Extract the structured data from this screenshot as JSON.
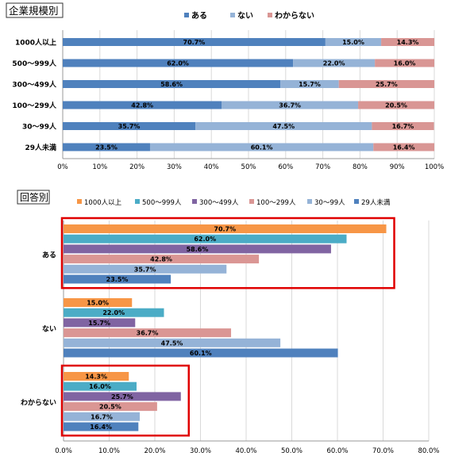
{
  "chart_data": [
    {
      "type": "bar",
      "orientation": "horizontal",
      "stacked": true,
      "percent_stacked": true,
      "title": "企業規模別",
      "categories": [
        "1000人以上",
        "500～999人",
        "300～499人",
        "100～299人",
        "30～99人",
        "29人未満"
      ],
      "series": [
        {
          "name": "ある",
          "color": "#4F81BD",
          "values": [
            70.7,
            62.0,
            58.6,
            42.8,
            35.7,
            23.5
          ]
        },
        {
          "name": "ない",
          "color": "#95B3D7",
          "values": [
            15.0,
            22.0,
            15.7,
            36.7,
            47.5,
            60.1
          ]
        },
        {
          "name": "わからない",
          "color": "#D99694",
          "values": [
            14.3,
            16.0,
            25.7,
            20.5,
            16.7,
            16.4
          ]
        }
      ],
      "xlim": [
        0,
        100
      ],
      "xticks": [
        "0%",
        "10%",
        "20%",
        "30%",
        "40%",
        "50%",
        "60%",
        "70%",
        "80%",
        "90%",
        "100%"
      ],
      "grid": true,
      "legend_position": "top"
    },
    {
      "type": "bar",
      "orientation": "horizontal",
      "stacked": false,
      "title": "回答別",
      "categories": [
        "ある",
        "ない",
        "わからない"
      ],
      "series": [
        {
          "name": "1000人以上",
          "color": "#F79646",
          "values": [
            70.7,
            15.0,
            14.3
          ]
        },
        {
          "name": "500～999人",
          "color": "#4BACC6",
          "values": [
            62.0,
            22.0,
            16.0
          ]
        },
        {
          "name": "300～499人",
          "color": "#8064A2",
          "values": [
            58.6,
            15.7,
            25.7
          ]
        },
        {
          "name": "100～299人",
          "color": "#DA9694",
          "values": [
            42.8,
            36.7,
            20.5
          ]
        },
        {
          "name": "30～99人",
          "color": "#95B3D7",
          "values": [
            35.7,
            47.5,
            16.7
          ]
        },
        {
          "name": "29人未満",
          "color": "#4F81BD",
          "values": [
            23.5,
            60.1,
            16.4
          ]
        }
      ],
      "xlim": [
        0,
        80
      ],
      "xticks": [
        "0.0%",
        "10.0%",
        "20.0%",
        "30.0%",
        "40.0%",
        "50.0%",
        "60.0%",
        "70.0%",
        "80.0%"
      ],
      "grid": true,
      "legend_position": "top",
      "highlighted_categories": [
        "ある",
        "わからない"
      ],
      "highlight_color": "#E00000"
    }
  ]
}
